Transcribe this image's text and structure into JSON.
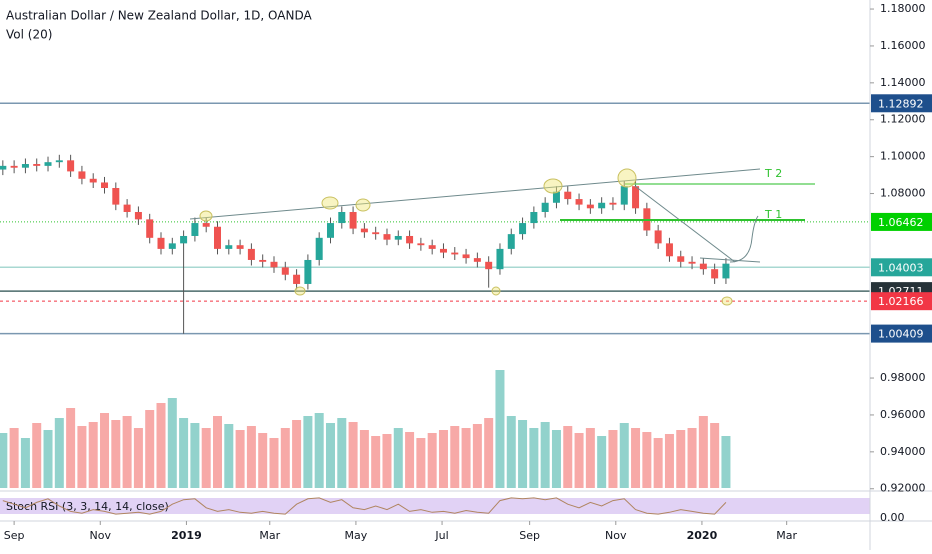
{
  "chart_data": {
    "type": "candlestick",
    "title": "Australian Dollar / New Zealand Dollar, 1D, OANDA",
    "volume_label": "Vol (20)",
    "stoch_label": "Stoch RSI (3, 3, 14, 14, close)",
    "annotations": [
      "T 1",
      "T 2"
    ],
    "xlim": [
      -10,
      606
    ],
    "xticks": [
      {
        "value": 0,
        "label": "Sep"
      },
      {
        "value": 61,
        "label": "Nov"
      },
      {
        "value": 122,
        "label": "2019"
      },
      {
        "value": 181,
        "label": "Mar"
      },
      {
        "value": 242,
        "label": "May"
      },
      {
        "value": 303,
        "label": "Jul"
      },
      {
        "value": 365,
        "label": "Sep"
      },
      {
        "value": 426,
        "label": "Nov"
      },
      {
        "value": 487,
        "label": "2020"
      },
      {
        "value": 547,
        "label": "Mar"
      }
    ],
    "ylim": [
      0.9139,
      1.1849
    ],
    "yticks": [
      {
        "value": 1.18,
        "label": "1.18000"
      },
      {
        "value": 1.16,
        "label": "1.16000"
      },
      {
        "value": 1.14,
        "label": "1.14000"
      },
      {
        "value": 1.12,
        "label": "1.12000"
      },
      {
        "value": 1.1,
        "label": "1.10000"
      },
      {
        "value": 1.08,
        "label": "1.08000"
      },
      {
        "value": 0.98,
        "label": "0.98000"
      },
      {
        "value": 0.96,
        "label": "0.96000"
      },
      {
        "value": 0.94,
        "label": "0.94000"
      },
      {
        "value": 0.92,
        "label": "0.92000"
      }
    ],
    "stoch_ylim": [
      0,
      100
    ],
    "stoch_yticks": [
      {
        "value": 0,
        "label": "0.00"
      }
    ],
    "volume_lim": [
      0,
      130
    ],
    "up_color": "#26a69a",
    "down_color": "#ef5350",
    "levels": [
      {
        "value": 1.12892,
        "color": "#1e4f8c",
        "line": "#7a97b0",
        "style": "solid"
      },
      {
        "value": 1.06462,
        "color": "#00d000",
        "line": "#2ec22e",
        "style": "dotted"
      },
      {
        "value": 1.04003,
        "color": "#26a69a",
        "line": "#a8d8d2",
        "style": "solid"
      },
      {
        "value": 1.02711,
        "color": "#263238",
        "line": "#4a6a6a",
        "style": "solid"
      },
      {
        "value": 1.02166,
        "color": "#f23645",
        "line": "#f23645",
        "style": "dashed"
      },
      {
        "value": 1.00409,
        "color": "#1e4f8c",
        "line": "#7a97b0",
        "style": "solid"
      }
    ],
    "x": [
      -8,
      0,
      8,
      16,
      24,
      32,
      40,
      48,
      56,
      64,
      72,
      80,
      88,
      96,
      104,
      112,
      120,
      128,
      136,
      144,
      152,
      160,
      168,
      176,
      184,
      192,
      200,
      208,
      216,
      224,
      232,
      240,
      248,
      256,
      264,
      272,
      280,
      288,
      296,
      304,
      312,
      320,
      328,
      336,
      344,
      352,
      360,
      368,
      376,
      384,
      392,
      400,
      408,
      416,
      424,
      432,
      440,
      448,
      456,
      464,
      472,
      480,
      488,
      496,
      504
    ],
    "open": [
      1.093,
      1.095,
      1.094,
      1.096,
      1.095,
      1.097,
      1.098,
      1.092,
      1.088,
      1.086,
      1.083,
      1.074,
      1.07,
      1.066,
      1.056,
      1.05,
      1.053,
      1.057,
      1.064,
      1.062,
      1.05,
      1.052,
      1.05,
      1.044,
      1.043,
      1.04,
      1.036,
      1.031,
      1.044,
      1.056,
      1.064,
      1.07,
      1.061,
      1.059,
      1.058,
      1.055,
      1.057,
      1.053,
      1.052,
      1.05,
      1.048,
      1.047,
      1.045,
      1.043,
      1.039,
      1.05,
      1.058,
      1.064,
      1.07,
      1.075,
      1.081,
      1.077,
      1.074,
      1.072,
      1.075,
      1.074,
      1.084,
      1.072,
      1.06,
      1.053,
      1.046,
      1.043,
      1.042,
      1.039,
      1.034
    ],
    "high": [
      1.098,
      1.098,
      1.099,
      1.099,
      1.1,
      1.101,
      1.101,
      1.095,
      1.091,
      1.089,
      1.086,
      1.077,
      1.073,
      1.069,
      1.059,
      1.056,
      1.06,
      1.067,
      1.067,
      1.065,
      1.055,
      1.055,
      1.053,
      1.047,
      1.046,
      1.043,
      1.039,
      1.047,
      1.059,
      1.067,
      1.073,
      1.073,
      1.064,
      1.062,
      1.061,
      1.06,
      1.06,
      1.056,
      1.055,
      1.053,
      1.051,
      1.05,
      1.048,
      1.046,
      1.053,
      1.061,
      1.067,
      1.073,
      1.078,
      1.084,
      1.084,
      1.08,
      1.077,
      1.078,
      1.078,
      1.087,
      1.087,
      1.075,
      1.063,
      1.056,
      1.049,
      1.046,
      1.045,
      1.042,
      1.045
    ],
    "low": [
      1.09,
      1.091,
      1.091,
      1.092,
      1.092,
      1.094,
      1.089,
      1.085,
      1.083,
      1.08,
      1.071,
      1.067,
      1.063,
      1.053,
      1.047,
      1.047,
      1.004,
      1.054,
      1.059,
      1.047,
      1.047,
      1.047,
      1.041,
      1.04,
      1.037,
      1.033,
      1.028,
      1.028,
      1.041,
      1.053,
      1.061,
      1.058,
      1.056,
      1.055,
      1.052,
      1.052,
      1.05,
      1.049,
      1.047,
      1.045,
      1.044,
      1.042,
      1.04,
      1.029,
      1.036,
      1.047,
      1.055,
      1.061,
      1.067,
      1.072,
      1.074,
      1.071,
      1.069,
      1.069,
      1.071,
      1.071,
      1.069,
      1.057,
      1.05,
      1.043,
      1.04,
      1.039,
      1.036,
      1.031,
      1.031
    ],
    "close": [
      1.095,
      1.094,
      1.096,
      1.095,
      1.097,
      1.098,
      1.092,
      1.088,
      1.086,
      1.083,
      1.074,
      1.07,
      1.066,
      1.056,
      1.05,
      1.053,
      1.057,
      1.064,
      1.062,
      1.05,
      1.052,
      1.05,
      1.044,
      1.043,
      1.04,
      1.036,
      1.031,
      1.044,
      1.056,
      1.064,
      1.07,
      1.061,
      1.059,
      1.058,
      1.055,
      1.057,
      1.053,
      1.052,
      1.05,
      1.048,
      1.047,
      1.045,
      1.043,
      1.039,
      1.05,
      1.058,
      1.064,
      1.07,
      1.075,
      1.081,
      1.077,
      1.074,
      1.072,
      1.075,
      1.074,
      1.084,
      1.072,
      1.06,
      1.053,
      1.046,
      1.043,
      1.042,
      1.039,
      1.034,
      1.042
    ],
    "volume": [
      55,
      60,
      50,
      65,
      58,
      70,
      80,
      62,
      66,
      75,
      68,
      72,
      60,
      78,
      85,
      90,
      70,
      65,
      60,
      72,
      64,
      58,
      62,
      55,
      50,
      60,
      68,
      72,
      75,
      65,
      70,
      66,
      58,
      52,
      54,
      60,
      56,
      50,
      55,
      58,
      62,
      60,
      64,
      70,
      118,
      72,
      68,
      60,
      66,
      58,
      62,
      55,
      60,
      52,
      58,
      65,
      60,
      56,
      50,
      54,
      58,
      60,
      72,
      65,
      52
    ],
    "stoch": [
      80,
      60,
      40,
      70,
      90,
      50,
      20,
      10,
      30,
      20,
      5,
      10,
      15,
      5,
      20,
      60,
      85,
      90,
      40,
      20,
      30,
      15,
      10,
      20,
      10,
      5,
      60,
      90,
      95,
      70,
      85,
      40,
      30,
      50,
      30,
      60,
      20,
      30,
      15,
      20,
      10,
      25,
      15,
      10,
      80,
      95,
      90,
      95,
      85,
      95,
      60,
      40,
      70,
      50,
      80,
      90,
      30,
      10,
      5,
      15,
      30,
      20,
      10,
      5,
      70
    ]
  }
}
